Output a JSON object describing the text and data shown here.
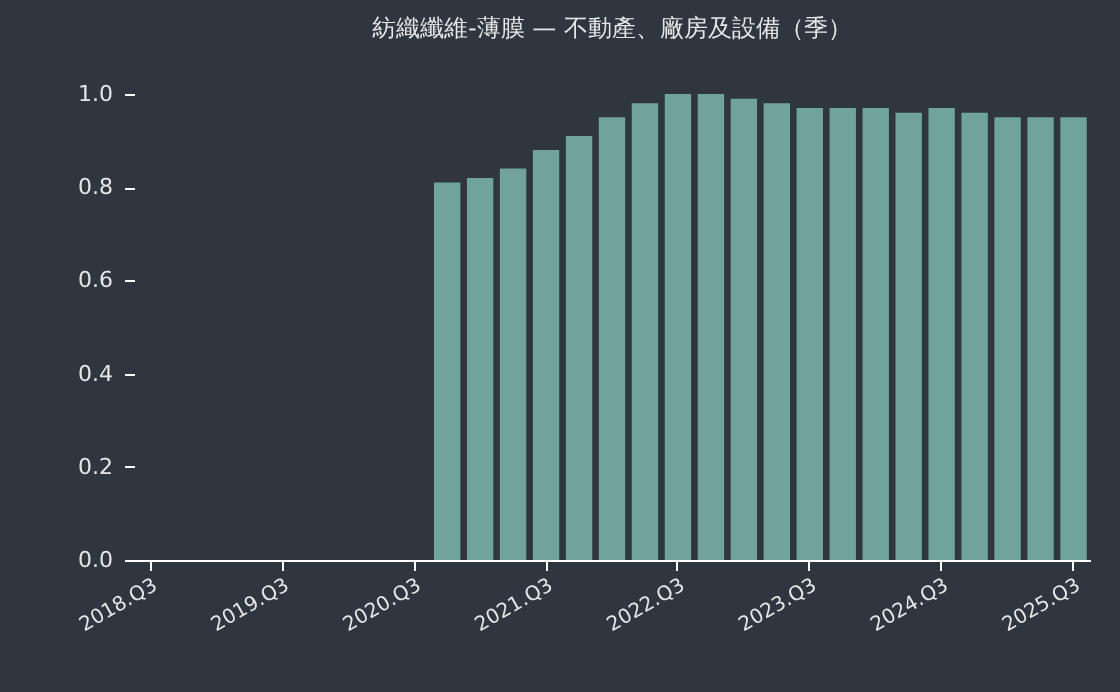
{
  "chart_data": {
    "type": "bar",
    "title": "紡織纖維-薄膜 — 不動產、廠房及設備（季）",
    "categories": [
      "2018.Q3",
      null,
      null,
      null,
      "2019.Q3",
      null,
      null,
      null,
      "2020.Q3",
      null,
      null,
      null,
      "2021.Q3",
      null,
      null,
      null,
      "2022.Q3",
      null,
      null,
      null,
      "2023.Q3",
      null,
      null,
      null,
      "2024.Q3",
      null,
      null,
      null,
      "2025.Q3"
    ],
    "values": [
      null,
      null,
      null,
      null,
      null,
      null,
      null,
      null,
      null,
      0.81,
      0.82,
      0.84,
      0.88,
      0.91,
      0.95,
      0.98,
      1.0,
      1.0,
      0.99,
      0.98,
      0.97,
      0.97,
      0.97,
      0.96,
      0.97,
      0.96,
      0.95,
      0.95,
      0.95
    ],
    "color": "#6fa39c",
    "ylim": [
      0,
      1.0
    ],
    "yticks": [
      {
        "value": 0,
        "label": "0.0"
      },
      0.2,
      0.4,
      0.6,
      0.8,
      {
        "value": 1,
        "label": "1.0"
      }
    ]
  }
}
